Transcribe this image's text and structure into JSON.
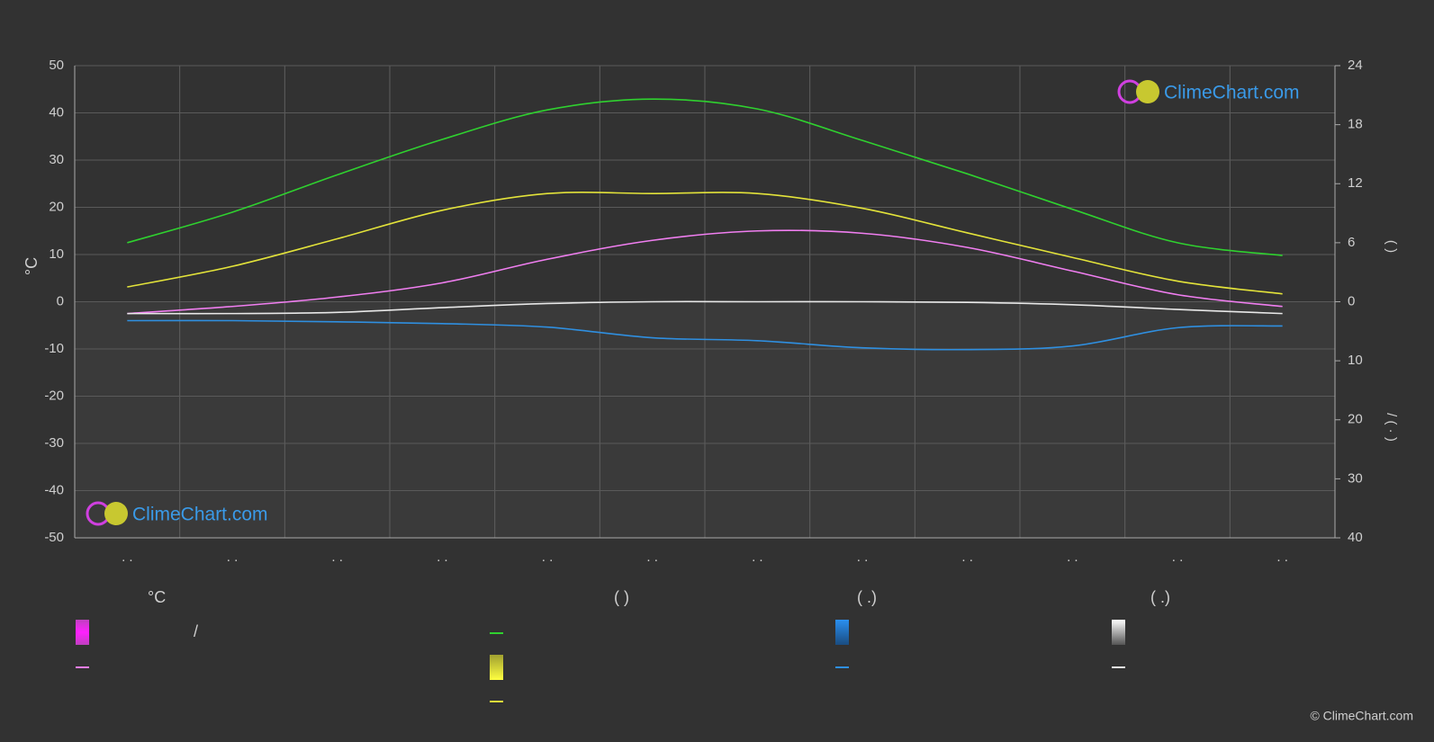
{
  "chart_data": {
    "type": "climate",
    "categories": [
      ". .",
      ". .",
      ". .",
      ". .",
      ". .",
      ". .",
      ". .",
      ". .",
      ". .",
      ". .",
      ". .",
      ". ."
    ],
    "ylim": [
      -50,
      50
    ],
    "yticks": [
      -50,
      -40,
      -30,
      -20,
      -10,
      0,
      10,
      20,
      30,
      40,
      50
    ],
    "ylabel": "°C",
    "y2lim": [
      -24,
      24
    ],
    "y2ticks": [
      0,
      6,
      12,
      18,
      24
    ],
    "y2label": "(      )",
    "y3lim": [
      40,
      -40
    ],
    "y3ticks": [
      10,
      20,
      30,
      40
    ],
    "y3label": "/  ( · )",
    "grid": true,
    "series": [
      {
        "color": "#2fd12f",
        "axis": "y2",
        "values": [
          6.0,
          9.1,
          12.9,
          16.5,
          19.5,
          20.6,
          19.6,
          16.4,
          13.0,
          9.4,
          6.0,
          4.7
        ]
      },
      {
        "color": "#e3e33a",
        "axis": "y2",
        "values": [
          1.5,
          3.6,
          6.4,
          9.3,
          11,
          11,
          11,
          9.5,
          7.0,
          4.5,
          2.1,
          0.8
        ]
      },
      {
        "color": "#f07ef0",
        "axis": "y",
        "values": [
          -2.5,
          -1,
          1,
          4,
          9,
          13,
          15,
          14.5,
          11.5,
          6.5,
          1.5,
          -1
        ]
      },
      {
        "color": "#2f8fe0",
        "axis": "y3",
        "values": [
          3.2,
          3.2,
          3.4,
          3.7,
          4.3,
          6.1,
          6.6,
          7.8,
          8.1,
          7.5,
          4.4,
          4.1
        ]
      },
      {
        "color": "#e8e8e8",
        "axis": "y3",
        "values": [
          2,
          2,
          1.8,
          1,
          0.3,
          0,
          0,
          0,
          0.1,
          0.5,
          1.3,
          2
        ]
      }
    ],
    "legend_headers": [
      "°C",
      "(          )",
      "(   .)",
      "(   .)"
    ],
    "legend_note": "/",
    "watermark": "ClimeChart.com",
    "copyright": "© ClimeChart.com"
  }
}
